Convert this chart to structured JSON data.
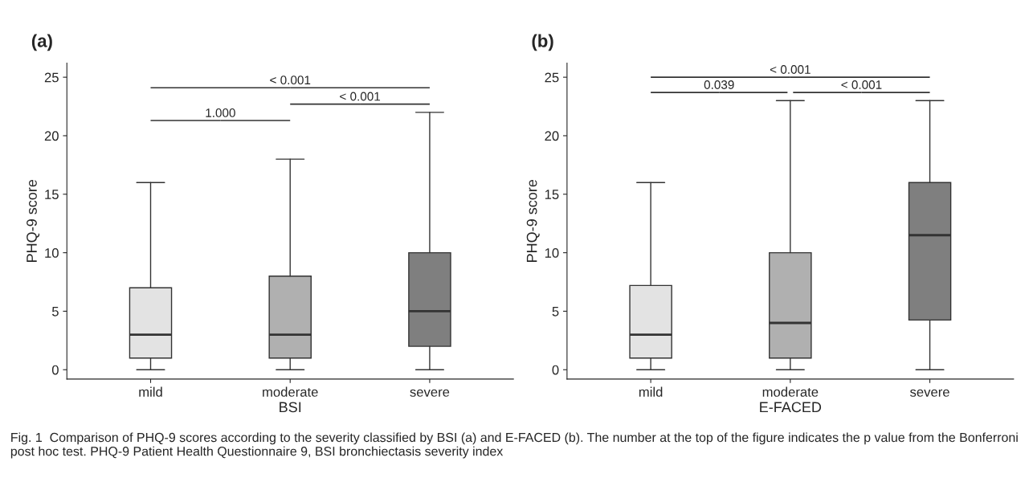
{
  "chart_data": [
    {
      "type": "box",
      "title": "(a)",
      "xlabel": "BSI",
      "ylabel": "PHQ-9 score",
      "categories": [
        "mild",
        "moderate",
        "severe"
      ],
      "colors": [
        "#e3e3e3",
        "#b0b0b0",
        "#7f7f7f"
      ],
      "boxes": [
        {
          "low": 0,
          "q1": 1,
          "median": 3,
          "q3": 7,
          "high": 16
        },
        {
          "low": 0,
          "q1": 1,
          "median": 3,
          "q3": 8,
          "high": 18
        },
        {
          "low": 0,
          "q1": 2,
          "median": 5,
          "q3": 10,
          "high": 22
        }
      ],
      "ylim": [
        -0.8,
        26.2
      ],
      "yticks": [
        0,
        5,
        10,
        15,
        20,
        25
      ],
      "grid": false,
      "annotations": [
        "1.000",
        "< 0.001",
        "< 0.001",
        "Fig. 1  Comparison of PHQ-9 scores according to the severity classified by BSI (a) and E-FACED (b). The number at the top of the figure indicates the p value from the Bonferroni post hoc test. PHQ-9 Patient Health Questionnaire 9, BSI bronchiectasis severity index"
      ]
    },
    {
      "type": "box",
      "title": "(b)",
      "xlabel": "E-FACED",
      "ylabel": "PHQ-9 score",
      "categories": [
        "mild",
        "moderate",
        "severe"
      ],
      "colors": [
        "#e3e3e3",
        "#b0b0b0",
        "#7f7f7f"
      ],
      "boxes": [
        {
          "low": 0,
          "q1": 1,
          "median": 3,
          "q3": 7.2,
          "high": 16
        },
        {
          "low": 0,
          "q1": 1,
          "median": 4,
          "q3": 10,
          "high": 23
        },
        {
          "low": 0,
          "q1": 4.25,
          "median": 11.5,
          "q3": 16,
          "high": 23
        }
      ],
      "ylim": [
        -0.8,
        26.2
      ],
      "yticks": [
        0,
        5,
        10,
        15,
        20,
        25
      ],
      "grid": false,
      "annotations": [
        "0.039",
        "< 0.001",
        "< 0.001"
      ]
    }
  ]
}
